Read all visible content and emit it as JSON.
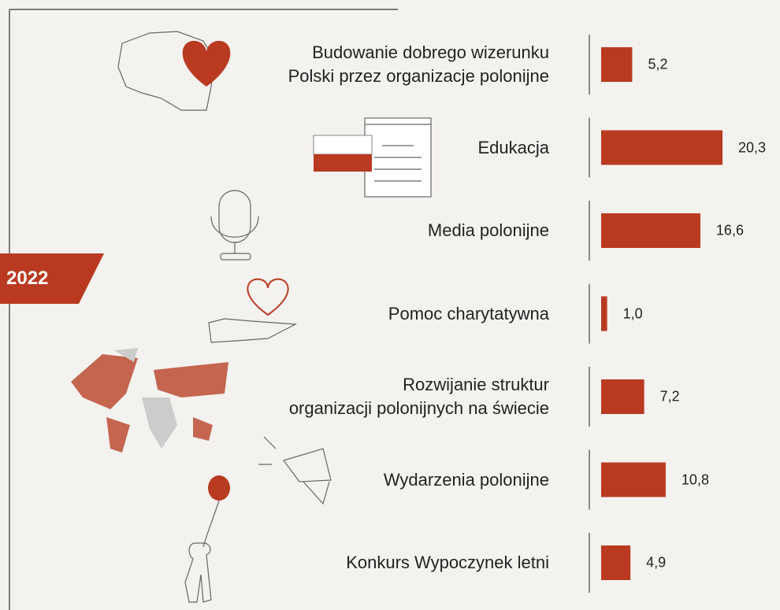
{
  "chart_data": {
    "type": "bar",
    "subtitle": "2022",
    "categories": [
      "Budowanie dobrego wizerunku\nPolski przez organizacje polonijne",
      "Edukacja",
      "Media polonijne",
      "Pomoc charytatywna",
      "Rozwijanie struktur\norganizacji polonijnych na świecie",
      "Wydarzenia polonijne",
      "Konkurs Wypoczynek letni"
    ],
    "values": [
      5.2,
      20.3,
      16.6,
      1.0,
      7.2,
      10.8,
      4.9
    ],
    "value_labels": [
      "5,2",
      "20,3",
      "16,6",
      "1,0",
      "7,2",
      "10,8",
      "4,9"
    ],
    "color": "#b93a21"
  }
}
